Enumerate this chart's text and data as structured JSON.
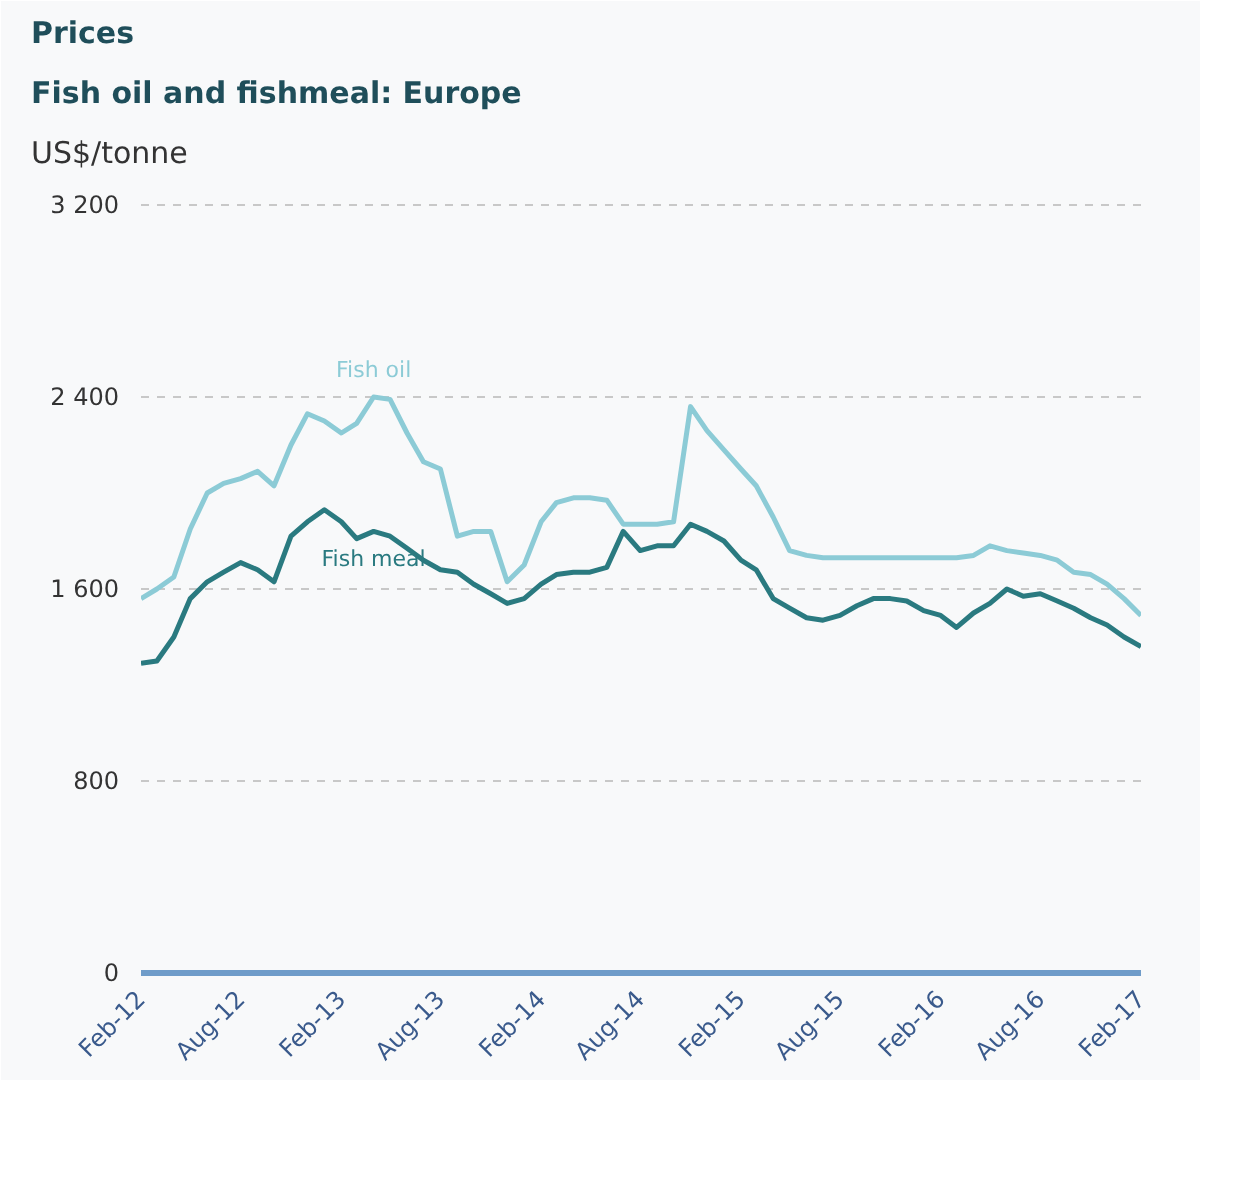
{
  "chart_data": {
    "type": "line",
    "title": "Prices",
    "subtitle": "Fish oil and fishmeal: Europe",
    "ylabel": "US$/tonne",
    "x": [
      "2012-02",
      "2012-03",
      "2012-04",
      "2012-05",
      "2012-06",
      "2012-07",
      "2012-08",
      "2012-09",
      "2012-10",
      "2012-11",
      "2012-12",
      "2013-01",
      "2013-02",
      "2013-03",
      "2013-04",
      "2013-05",
      "2013-06",
      "2013-07",
      "2013-08",
      "2013-09",
      "2013-10",
      "2013-11",
      "2013-12",
      "2014-01",
      "2014-02",
      "2014-03",
      "2014-04",
      "2014-05",
      "2014-06",
      "2014-07",
      "2014-08",
      "2014-09",
      "2014-10",
      "2014-11",
      "2014-12",
      "2015-01",
      "2015-02",
      "2015-03",
      "2015-04",
      "2015-05",
      "2015-06",
      "2015-07",
      "2015-08",
      "2015-09",
      "2015-10",
      "2015-11",
      "2015-12",
      "2016-01",
      "2016-02",
      "2016-03",
      "2016-04",
      "2016-05",
      "2016-06",
      "2016-07",
      "2016-08",
      "2016-09",
      "2016-10",
      "2016-11",
      "2016-12",
      "2017-01",
      "2017-02"
    ],
    "series": [
      {
        "name": "Fish oil",
        "color": "#8ccbd6",
        "values": [
          1560,
          1600,
          1650,
          1850,
          2000,
          2040,
          2060,
          2090,
          2030,
          2200,
          2330,
          2300,
          2250,
          2290,
          2400,
          2390,
          2250,
          2130,
          2100,
          1820,
          1840,
          1840,
          1630,
          1700,
          1880,
          1960,
          1980,
          1980,
          1970,
          1870,
          1870,
          1870,
          1880,
          2360,
          2260,
          2180,
          2100,
          2030,
          1900,
          1760,
          1740,
          1730,
          1730,
          1730,
          1730,
          1730,
          1730,
          1730,
          1730,
          1730,
          1740,
          1780,
          1760,
          1750,
          1740,
          1720,
          1670,
          1660,
          1620,
          1560,
          1490
        ]
      },
      {
        "name": "Fish meal",
        "color": "#2a7a80",
        "values": [
          1290,
          1300,
          1400,
          1560,
          1630,
          1670,
          1710,
          1680,
          1630,
          1820,
          1880,
          1930,
          1880,
          1810,
          1840,
          1820,
          1770,
          1720,
          1680,
          1670,
          1620,
          1580,
          1540,
          1560,
          1620,
          1660,
          1670,
          1670,
          1690,
          1840,
          1760,
          1780,
          1780,
          1870,
          1840,
          1800,
          1720,
          1680,
          1560,
          1520,
          1480,
          1470,
          1490,
          1530,
          1560,
          1560,
          1550,
          1510,
          1490,
          1440,
          1500,
          1540,
          1600,
          1570,
          1580,
          1550,
          1520,
          1480,
          1450,
          1400,
          1360
        ]
      }
    ],
    "ylim": [
      0,
      3300
    ],
    "yticks": [
      {
        "value": 0,
        "label": "0"
      },
      {
        "value": 800,
        "label": "800"
      },
      {
        "value": 1600,
        "label": "1 600"
      },
      {
        "value": 2400,
        "label": "2 400"
      },
      {
        "value": 3200,
        "label": "3 200"
      }
    ],
    "xticks": [
      {
        "value": "2012-02",
        "label": "Feb-12"
      },
      {
        "value": "2012-08",
        "label": "Aug-12"
      },
      {
        "value": "2013-02",
        "label": "Feb-13"
      },
      {
        "value": "2013-08",
        "label": "Aug-13"
      },
      {
        "value": "2014-02",
        "label": "Feb-14"
      },
      {
        "value": "2014-08",
        "label": "Aug-14"
      },
      {
        "value": "2015-02",
        "label": "Feb-15"
      },
      {
        "value": "2015-08",
        "label": "Aug-15"
      },
      {
        "value": "2016-02",
        "label": "Feb-16"
      },
      {
        "value": "2016-08",
        "label": "Aug-16"
      },
      {
        "value": "2017-02",
        "label": "Feb-17"
      }
    ],
    "xlim": [
      "2012-02",
      "2017-02"
    ],
    "grid": "y",
    "legend": false,
    "marker": "none",
    "line_style": "solid"
  }
}
